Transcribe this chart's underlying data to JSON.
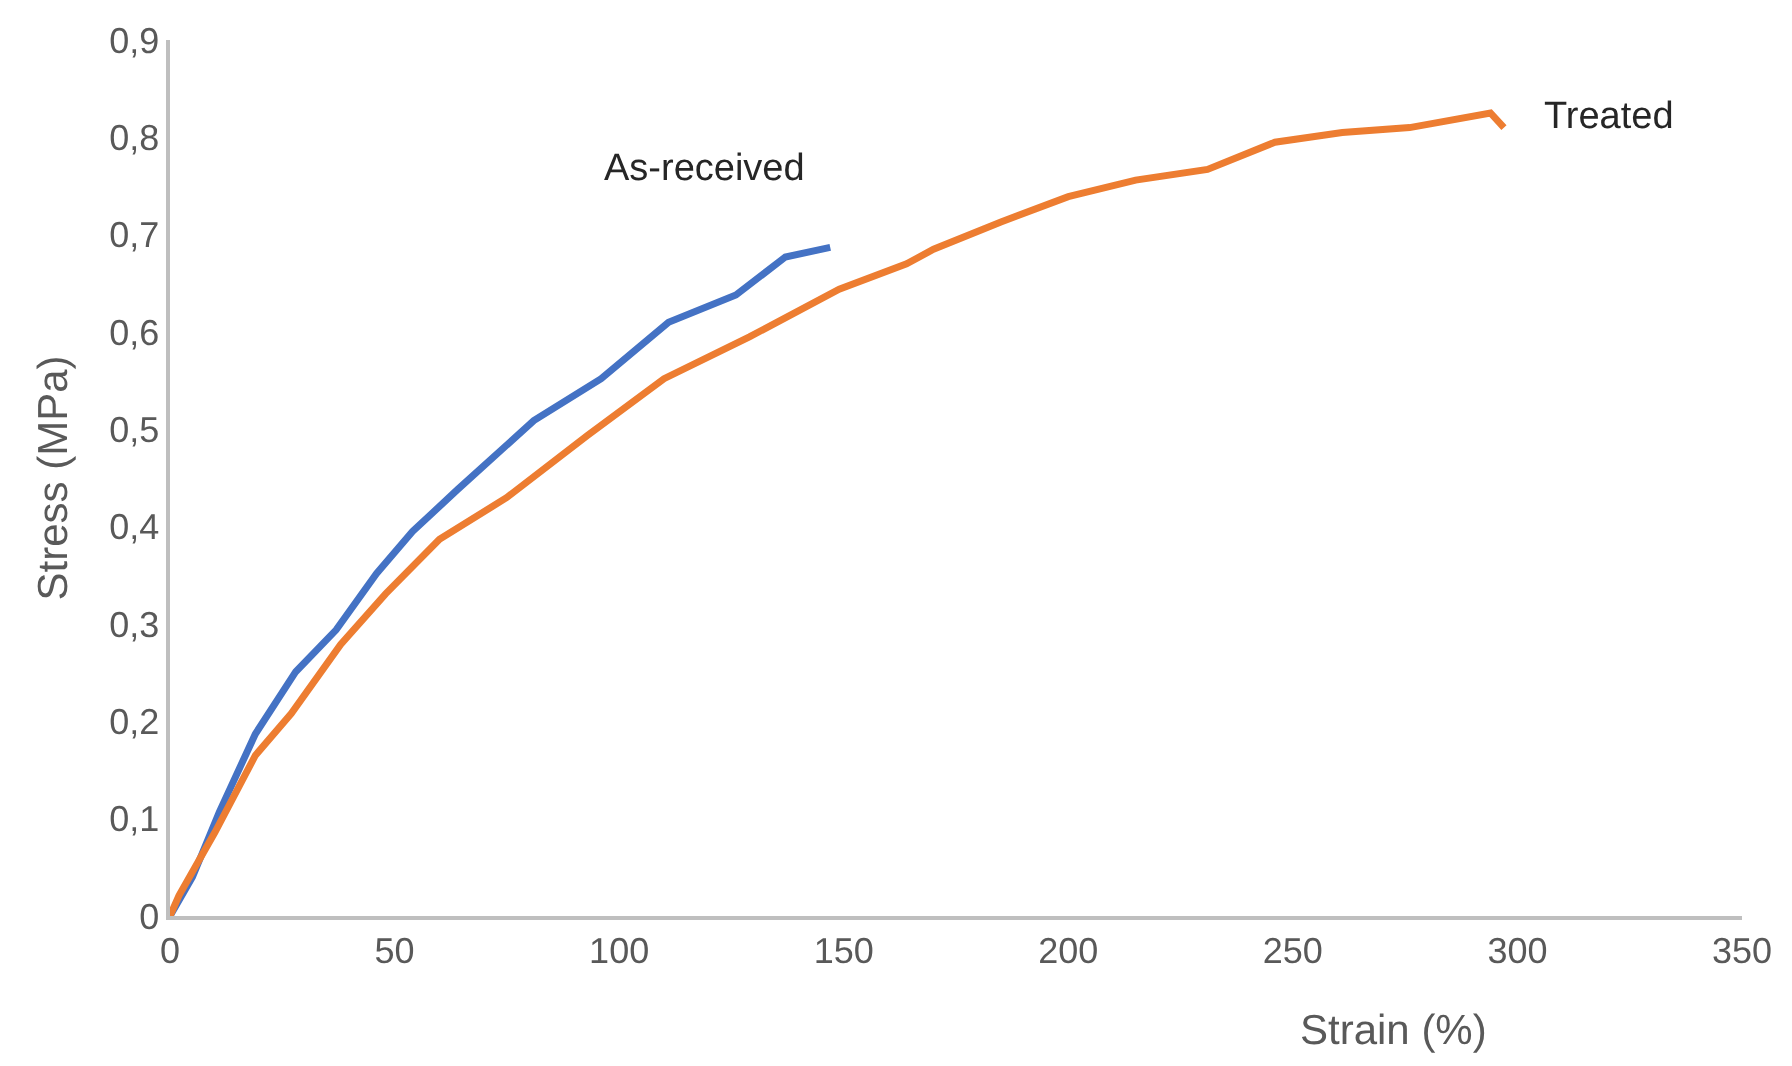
{
  "chart_data": {
    "type": "line",
    "xlabel": "Strain (%)",
    "ylabel": "Stress (MPa)",
    "xlim": [
      0,
      350
    ],
    "xticks": [
      0,
      50,
      100,
      150,
      200,
      250,
      300,
      350
    ],
    "ylim": [
      0,
      0.9
    ],
    "yticks": [
      0,
      {
        "value": 0.1,
        "label": "0,1"
      },
      {
        "value": 0.2,
        "label": "0,2"
      },
      {
        "value": 0.3,
        "label": "0,3"
      },
      {
        "value": 0.4,
        "label": "0,4"
      },
      {
        "value": 0.5,
        "label": "0,5"
      },
      {
        "value": 0.6,
        "label": "0,6"
      },
      {
        "value": 0.7,
        "label": "0,7"
      },
      {
        "value": 0.8,
        "label": "0,8"
      },
      {
        "value": 0.9,
        "label": "0,9"
      }
    ],
    "legend": false,
    "marker": "none",
    "line_style": "solid",
    "series": [
      {
        "name": "As-received",
        "color": "#4472c4",
        "x": [
          0,
          5,
          11,
          19,
          28,
          37,
          46,
          54,
          64,
          81,
          96,
          111,
          126,
          137,
          147
        ],
        "values": [
          0,
          0.04,
          0.107,
          0.187,
          0.251,
          0.294,
          0.352,
          0.395,
          0.438,
          0.509,
          0.552,
          0.61,
          0.638,
          0.677,
          0.687
        ]
      },
      {
        "name": "Treated",
        "color": "#ed7d31",
        "x": [
          0,
          2,
          10,
          19,
          27,
          38,
          48,
          60,
          75,
          93,
          110,
          129,
          149,
          164,
          170,
          185,
          200,
          215,
          231,
          246,
          261,
          276,
          294,
          297
        ],
        "values": [
          0,
          0.021,
          0.086,
          0.165,
          0.208,
          0.279,
          0.331,
          0.387,
          0.43,
          0.494,
          0.552,
          0.595,
          0.644,
          0.67,
          0.685,
          0.713,
          0.739,
          0.756,
          0.767,
          0.795,
          0.805,
          0.81,
          0.825,
          0.81
        ]
      }
    ]
  }
}
